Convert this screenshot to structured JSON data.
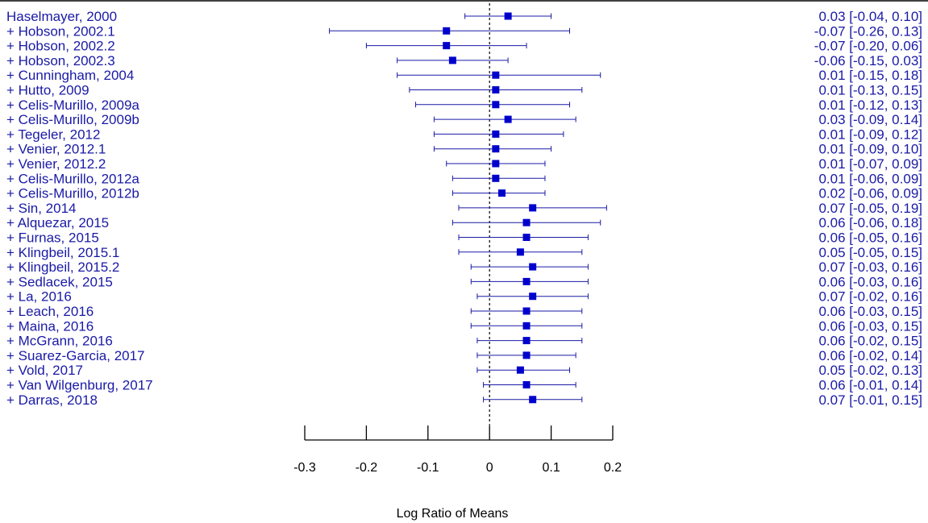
{
  "chart_data": {
    "type": "forest",
    "xlabel": "Log Ratio of Means",
    "xlim": [
      -0.3,
      0.2
    ],
    "x_ticks": [
      -0.3,
      -0.2,
      -0.1,
      0,
      0.1,
      0.2
    ],
    "x_tick_labels": [
      "-0.3",
      "-0.2",
      "-0.1",
      "0",
      "0.1",
      "0.2"
    ],
    "reference_line": 0,
    "colors": {
      "series": "#1a1aa6",
      "marker": "#0000cc",
      "axis": "#000000"
    },
    "studies": [
      {
        "label": "Haselmayer, 2000",
        "estimate": 0.03,
        "lower": -0.04,
        "upper": 0.1,
        "ci_text": "0.03 [-0.04, 0.10]"
      },
      {
        "label": "+ Hobson, 2002.1",
        "estimate": -0.07,
        "lower": -0.26,
        "upper": 0.13,
        "ci_text": "-0.07 [-0.26, 0.13]"
      },
      {
        "label": "+ Hobson, 2002.2",
        "estimate": -0.07,
        "lower": -0.2,
        "upper": 0.06,
        "ci_text": "-0.07 [-0.20, 0.06]"
      },
      {
        "label": "+ Hobson, 2002.3",
        "estimate": -0.06,
        "lower": -0.15,
        "upper": 0.03,
        "ci_text": "-0.06 [-0.15, 0.03]"
      },
      {
        "label": "+ Cunningham, 2004",
        "estimate": 0.01,
        "lower": -0.15,
        "upper": 0.18,
        "ci_text": "0.01 [-0.15, 0.18]"
      },
      {
        "label": "+ Hutto, 2009",
        "estimate": 0.01,
        "lower": -0.13,
        "upper": 0.15,
        "ci_text": "0.01 [-0.13, 0.15]"
      },
      {
        "label": "+ Celis-Murillo, 2009a",
        "estimate": 0.01,
        "lower": -0.12,
        "upper": 0.13,
        "ci_text": "0.01 [-0.12, 0.13]"
      },
      {
        "label": "+ Celis-Murillo, 2009b",
        "estimate": 0.03,
        "lower": -0.09,
        "upper": 0.14,
        "ci_text": "0.03 [-0.09, 0.14]"
      },
      {
        "label": "+ Tegeler, 2012",
        "estimate": 0.01,
        "lower": -0.09,
        "upper": 0.12,
        "ci_text": "0.01 [-0.09, 0.12]"
      },
      {
        "label": "+ Venier, 2012.1",
        "estimate": 0.01,
        "lower": -0.09,
        "upper": 0.1,
        "ci_text": "0.01 [-0.09, 0.10]"
      },
      {
        "label": "+ Venier, 2012.2",
        "estimate": 0.01,
        "lower": -0.07,
        "upper": 0.09,
        "ci_text": "0.01 [-0.07, 0.09]"
      },
      {
        "label": "+ Celis-Murillo, 2012a",
        "estimate": 0.01,
        "lower": -0.06,
        "upper": 0.09,
        "ci_text": "0.01 [-0.06, 0.09]"
      },
      {
        "label": "+ Celis-Murillo, 2012b",
        "estimate": 0.02,
        "lower": -0.06,
        "upper": 0.09,
        "ci_text": "0.02 [-0.06, 0.09]"
      },
      {
        "label": "+ Sin, 2014",
        "estimate": 0.07,
        "lower": -0.05,
        "upper": 0.19,
        "ci_text": "0.07 [-0.05, 0.19]"
      },
      {
        "label": "+ Alquezar, 2015",
        "estimate": 0.06,
        "lower": -0.06,
        "upper": 0.18,
        "ci_text": "0.06 [-0.06, 0.18]"
      },
      {
        "label": "+ Furnas, 2015",
        "estimate": 0.06,
        "lower": -0.05,
        "upper": 0.16,
        "ci_text": "0.06 [-0.05, 0.16]"
      },
      {
        "label": "+ Klingbeil, 2015.1",
        "estimate": 0.05,
        "lower": -0.05,
        "upper": 0.15,
        "ci_text": "0.05 [-0.05, 0.15]"
      },
      {
        "label": "+ Klingbeil, 2015.2",
        "estimate": 0.07,
        "lower": -0.03,
        "upper": 0.16,
        "ci_text": "0.07 [-0.03, 0.16]"
      },
      {
        "label": "+ Sedlacek, 2015",
        "estimate": 0.06,
        "lower": -0.03,
        "upper": 0.16,
        "ci_text": "0.06 [-0.03, 0.16]"
      },
      {
        "label": "+ La, 2016",
        "estimate": 0.07,
        "lower": -0.02,
        "upper": 0.16,
        "ci_text": "0.07 [-0.02, 0.16]"
      },
      {
        "label": "+ Leach, 2016",
        "estimate": 0.06,
        "lower": -0.03,
        "upper": 0.15,
        "ci_text": "0.06 [-0.03, 0.15]"
      },
      {
        "label": "+ Maina, 2016",
        "estimate": 0.06,
        "lower": -0.03,
        "upper": 0.15,
        "ci_text": "0.06 [-0.03, 0.15]"
      },
      {
        "label": "+ McGrann, 2016",
        "estimate": 0.06,
        "lower": -0.02,
        "upper": 0.15,
        "ci_text": "0.06 [-0.02, 0.15]"
      },
      {
        "label": "+ Suarez-Garcia, 2017",
        "estimate": 0.06,
        "lower": -0.02,
        "upper": 0.14,
        "ci_text": "0.06 [-0.02, 0.14]"
      },
      {
        "label": "+ Vold, 2017",
        "estimate": 0.05,
        "lower": -0.02,
        "upper": 0.13,
        "ci_text": "0.05 [-0.02, 0.13]"
      },
      {
        "label": "+ Van Wilgenburg, 2017",
        "estimate": 0.06,
        "lower": -0.01,
        "upper": 0.14,
        "ci_text": "0.06 [-0.01, 0.14]"
      },
      {
        "label": "+ Darras, 2018",
        "estimate": 0.07,
        "lower": -0.01,
        "upper": 0.15,
        "ci_text": "0.07 [-0.01, 0.15]"
      }
    ]
  }
}
